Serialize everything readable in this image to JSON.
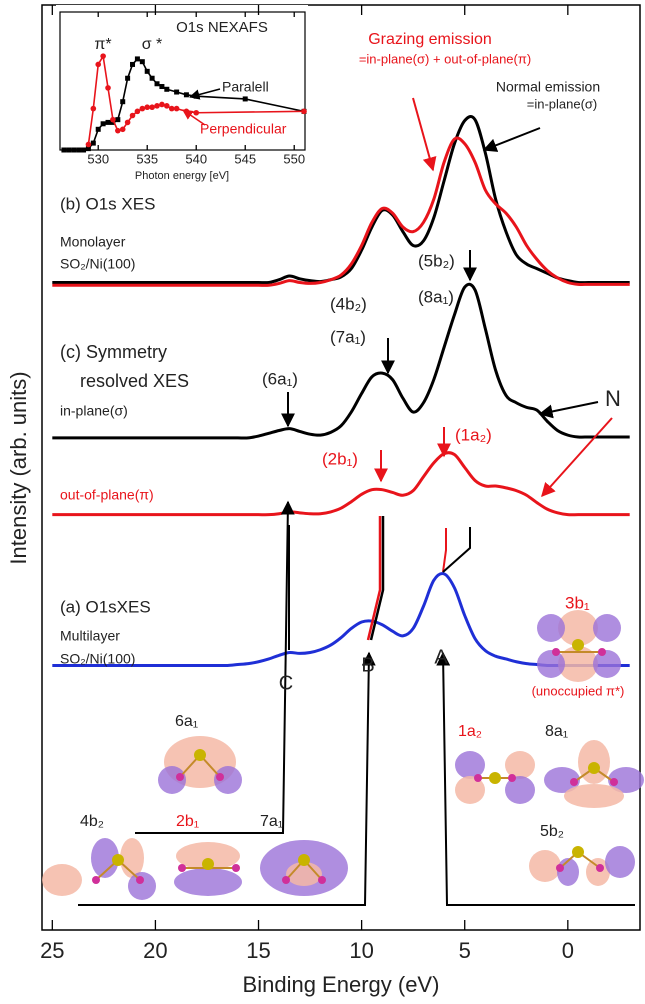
{
  "chart_data": [
    {
      "type": "line",
      "xlabel": "Binding Energy (eV)",
      "ylabel": "Intensity (arb. units)",
      "xlim": [
        25.5,
        -3.5
      ],
      "xticks": [
        25,
        20,
        15,
        10,
        5,
        0
      ],
      "ylim": [
        0,
        100
      ],
      "x": [
        25,
        24.5,
        24,
        23.5,
        23,
        22.5,
        22,
        21.5,
        21,
        20.5,
        20,
        19.5,
        19,
        18.5,
        18,
        17.5,
        17,
        16.5,
        16,
        15.5,
        15,
        14.5,
        14,
        13.5,
        13,
        12.5,
        12,
        11.5,
        11,
        10.5,
        10,
        9.5,
        9,
        8.5,
        8,
        7.5,
        7,
        6.5,
        6,
        5.5,
        5,
        4.5,
        4,
        3.5,
        3,
        2.5,
        2,
        1.5,
        1,
        0.5,
        0,
        -0.5,
        -1,
        -1.5,
        -2,
        -2.5,
        -3
      ],
      "series": [
        {
          "name": "Normal emission",
          "color": "#000000",
          "values": [
            70,
            70,
            70,
            70,
            70,
            70,
            70,
            70,
            70,
            70,
            70,
            70,
            70,
            70,
            70,
            70,
            70,
            70,
            70,
            70,
            70,
            70,
            70.3,
            70.7,
            70.4,
            70.2,
            70.1,
            70.3,
            70.6,
            71.5,
            73.5,
            76,
            77.8,
            77.3,
            75.5,
            74,
            74.5,
            77,
            81,
            85,
            87.5,
            87.6,
            84,
            79,
            75.5,
            73,
            72,
            71.5,
            71,
            70.5,
            70.2,
            70,
            70,
            70,
            70,
            70,
            70
          ]
        },
        {
          "name": "Grazing emission",
          "color": "#e8141b",
          "values": [
            69.7,
            69.7,
            69.7,
            69.7,
            69.7,
            69.7,
            69.7,
            69.7,
            69.7,
            69.7,
            69.7,
            69.7,
            69.7,
            69.7,
            69.7,
            69.7,
            69.7,
            69.7,
            69.7,
            69.7,
            69.7,
            69.7,
            69.9,
            70.2,
            70,
            69.9,
            70,
            70.3,
            70.8,
            72,
            74,
            76.5,
            78,
            77.5,
            76,
            75.5,
            76.5,
            79,
            83,
            85.5,
            85,
            83,
            80,
            78.5,
            77.5,
            76,
            74,
            72.5,
            71.3,
            70.5,
            70,
            69.8,
            69.8,
            69.8,
            69.8,
            69.8,
            69.8
          ]
        },
        {
          "name": "in-plane(σ)",
          "color": "#000000",
          "values": [
            53.2,
            53.2,
            53.2,
            53.2,
            53.2,
            53.2,
            53.2,
            53.2,
            53.2,
            53.2,
            53.2,
            53.2,
            53.2,
            53.2,
            53.2,
            53.2,
            53.2,
            53.2,
            53.2,
            53.2,
            53.4,
            53.7,
            54,
            54.2,
            53.9,
            53.6,
            53.5,
            53.8,
            54.5,
            56,
            58,
            59.8,
            60.2,
            59.5,
            57.5,
            56,
            57,
            59.5,
            63,
            66.5,
            69.5,
            69.2,
            65,
            60.5,
            57.8,
            57,
            56.5,
            56.2,
            55,
            54,
            53.5,
            53.3,
            53.3,
            53.3,
            53.3,
            53.3,
            53.3
          ]
        },
        {
          "name": "out-of-plane(π)",
          "color": "#e8141b",
          "values": [
            44.9,
            44.9,
            44.9,
            44.9,
            44.9,
            44.9,
            44.9,
            44.9,
            44.9,
            44.9,
            44.9,
            44.9,
            44.9,
            44.9,
            44.9,
            44.9,
            44.9,
            44.9,
            44.9,
            44.9,
            44.9,
            44.9,
            45,
            45.2,
            45.1,
            45,
            45,
            45.2,
            45.6,
            46.3,
            47.1,
            47.6,
            47.6,
            47.3,
            47,
            47.5,
            49,
            50.5,
            51.5,
            51.4,
            50,
            48.6,
            48,
            48,
            47.8,
            47.5,
            47,
            46.2,
            45.5,
            45.1,
            44.9,
            44.9,
            44.9,
            44.9,
            44.9,
            44.9,
            44.9
          ]
        },
        {
          "name": "(a) O1sXES",
          "color": "#1f2fd6",
          "values": [
            28.6,
            28.6,
            28.6,
            28.6,
            28.6,
            28.6,
            28.6,
            28.6,
            28.6,
            28.6,
            28.6,
            28.6,
            28.6,
            28.6,
            28.6,
            28.6,
            28.6,
            28.6,
            28.7,
            28.8,
            29,
            29.3,
            29.7,
            30,
            29.9,
            30,
            30.3,
            30.8,
            31.6,
            32.6,
            33.3,
            33.4,
            33,
            32.3,
            31.8,
            32.6,
            35,
            37.8,
            38.5,
            37,
            34,
            31.5,
            30.2,
            29.6,
            29.3,
            29,
            28.8,
            28.7,
            28.6,
            28.6,
            28.6,
            28.6,
            28.6,
            28.6,
            28.6,
            28.6,
            28.6
          ]
        }
      ],
      "annotations": [
        "=in-plane(σ) + out-of-plane(π)",
        "=in-plane(σ)",
        "(b) O1s XES",
        "Monolayer",
        "SO₂/Ni(100)",
        "(5b₂)",
        "(8a₁)",
        "(4b₂)",
        "(7a₁)",
        "(c) Symmetry",
        "resolved XES",
        "(6a₁)",
        "N",
        "(1a₂)",
        "(2b₁)",
        "3b₁",
        "(unoccupied π*)",
        "Multilayer",
        "SO₂/Ni(100)",
        "C",
        "B",
        "A",
        "6a₁",
        "1a₂",
        "8a₁",
        "4b₂",
        "2b₁",
        "7a₁",
        "5b₂"
      ]
    },
    {
      "type": "line",
      "title": "O1s NEXAFS",
      "xlabel": "Photon energy [eV]",
      "xlim": [
        526.1,
        551.1
      ],
      "xticks": [
        530,
        535,
        540,
        545,
        550
      ],
      "ylim": [
        0,
        1
      ],
      "series": [
        {
          "name": "Paralell",
          "color": "#000000",
          "marker": "square",
          "x": [
            526.5,
            527,
            527.5,
            528,
            528.5,
            529,
            529.5,
            530,
            530.5,
            531,
            531.5,
            532,
            532.5,
            533,
            533.5,
            534,
            534.5,
            535,
            535.5,
            536,
            536.5,
            537,
            538,
            539,
            540,
            545,
            551
          ],
          "values": [
            0,
            0,
            0,
            0,
            0,
            0.01,
            0.05,
            0.15,
            0.19,
            0.2,
            0.2,
            0.22,
            0.35,
            0.52,
            0.62,
            0.66,
            0.64,
            0.57,
            0.52,
            0.48,
            0.46,
            0.44,
            0.42,
            0.4,
            0.39,
            0.37,
            0.28
          ]
        },
        {
          "name": "Perpendicular",
          "color": "#e8141b",
          "marker": "circle",
          "x": [
            529,
            529.5,
            530,
            530.5,
            531,
            531.5,
            532,
            532.5,
            533,
            533.5,
            534,
            534.5,
            535,
            535.5,
            536,
            536.5,
            537,
            537.5,
            538,
            539,
            540,
            551
          ],
          "values": [
            0.04,
            0.3,
            0.62,
            0.68,
            0.45,
            0.22,
            0.14,
            0.15,
            0.2,
            0.25,
            0.28,
            0.3,
            0.31,
            0.31,
            0.32,
            0.33,
            0.32,
            0.3,
            0.3,
            0.28,
            0.27,
            0.28
          ]
        }
      ],
      "annotations": [
        "π*",
        "σ *"
      ]
    }
  ]
}
